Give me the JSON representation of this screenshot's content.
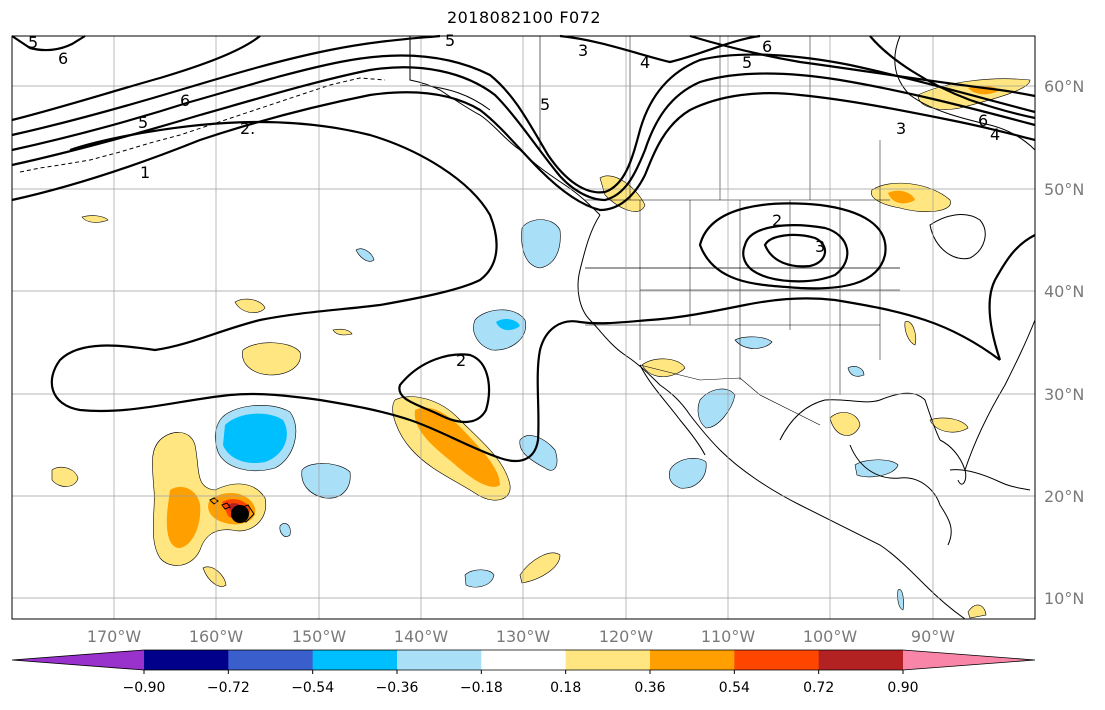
{
  "title": "2018082100 F072",
  "lat_labels": [
    "60°N",
    "50°N",
    "40°N",
    "30°N",
    "20°N",
    "10°N"
  ],
  "lon_labels": [
    "170°W",
    "160°W",
    "150°W",
    "140°W",
    "130°W",
    "120°W",
    "110°W",
    "100°W",
    "90°W"
  ],
  "contour_labels": [
    "5",
    "6",
    "6",
    "5",
    "2.",
    "1",
    "5",
    "3",
    "4",
    "6",
    "5",
    "5",
    "3",
    "6",
    "4",
    "2",
    "3",
    "2"
  ],
  "colorbar": {
    "tick_labels": [
      "−0.90",
      "−0.72",
      "−0.54",
      "−0.36",
      "−0.18",
      "0.18",
      "0.36",
      "0.54",
      "0.72",
      "0.90"
    ],
    "colors": {
      "under": "#9932cc",
      "bins": [
        "#00008b",
        "#3a5fcd",
        "#00bfff",
        "#aadff8",
        "#ffffff",
        "#ffe680",
        "#ff9f00",
        "#ff4500",
        "#b22222"
      ],
      "over": "#f986a9"
    }
  },
  "colors": {
    "grid": "#9e9e9e",
    "land_outline": "#000000",
    "contour": "#000000",
    "storm_marker": "#000000"
  }
}
